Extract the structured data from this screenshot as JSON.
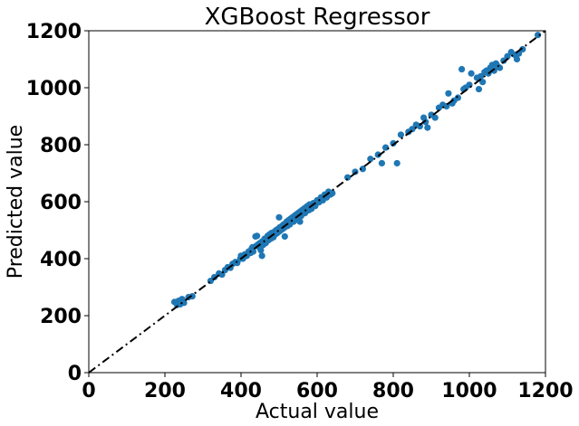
{
  "chart_data": {
    "type": "scatter",
    "title": "XGBoost Regressor",
    "xlabel": "Actual value",
    "ylabel": "Predicted value",
    "xlim": [
      0,
      1200
    ],
    "ylim": [
      0,
      1200
    ],
    "xticks": [
      "0",
      "200",
      "400",
      "600",
      "800",
      "1000",
      "1200"
    ],
    "yticks": [
      "0",
      "200",
      "400",
      "600",
      "800",
      "1000",
      "1200"
    ],
    "grid": false,
    "legend": "none",
    "marker_color": "#1f77b4",
    "reference_line": {
      "style": "dash-dot",
      "color": "#000000",
      "points": [
        [
          0,
          0
        ],
        [
          1200,
          1200
        ]
      ]
    },
    "series": [
      {
        "points": [
          [
            225,
            248
          ],
          [
            232,
            238
          ],
          [
            240,
            240
          ],
          [
            245,
            258
          ],
          [
            250,
            245
          ],
          [
            236,
            252
          ],
          [
            262,
            265
          ],
          [
            272,
            268
          ],
          [
            320,
            322
          ],
          [
            330,
            335
          ],
          [
            342,
            348
          ],
          [
            350,
            344
          ],
          [
            358,
            360
          ],
          [
            365,
            370
          ],
          [
            372,
            368
          ],
          [
            378,
            382
          ],
          [
            385,
            388
          ],
          [
            390,
            385
          ],
          [
            398,
            400
          ],
          [
            400,
            410
          ],
          [
            405,
            400
          ],
          [
            410,
            415
          ],
          [
            415,
            410
          ],
          [
            420,
            425
          ],
          [
            425,
            420
          ],
          [
            428,
            435
          ],
          [
            430,
            440
          ],
          [
            432,
            425
          ],
          [
            438,
            478
          ],
          [
            440,
            445
          ],
          [
            442,
            480
          ],
          [
            445,
            450
          ],
          [
            448,
            440
          ],
          [
            450,
            455
          ],
          [
            452,
            430
          ],
          [
            455,
            460
          ],
          [
            458,
            448
          ],
          [
            460,
            465
          ],
          [
            462,
            470
          ],
          [
            465,
            455
          ],
          [
            468,
            472
          ],
          [
            470,
            480
          ],
          [
            472,
            465
          ],
          [
            475,
            485
          ],
          [
            478,
            470
          ],
          [
            480,
            490
          ],
          [
            482,
            478
          ],
          [
            485,
            475
          ],
          [
            488,
            495
          ],
          [
            490,
            485
          ],
          [
            492,
            500
          ],
          [
            495,
            490
          ],
          [
            498,
            505
          ],
          [
            500,
            495
          ],
          [
            502,
            510
          ],
          [
            505,
            500
          ],
          [
            508,
            515
          ],
          [
            510,
            505
          ],
          [
            512,
            520
          ],
          [
            515,
            510
          ],
          [
            518,
            525
          ],
          [
            520,
            530
          ],
          [
            522,
            515
          ],
          [
            525,
            535
          ],
          [
            528,
            520
          ],
          [
            530,
            540
          ],
          [
            532,
            528
          ],
          [
            535,
            545
          ],
          [
            538,
            530
          ],
          [
            540,
            550
          ],
          [
            542,
            535
          ],
          [
            545,
            555
          ],
          [
            548,
            545
          ],
          [
            550,
            560
          ],
          [
            552,
            548
          ],
          [
            555,
            565
          ],
          [
            558,
            550
          ],
          [
            560,
            570
          ],
          [
            562,
            558
          ],
          [
            565,
            575
          ],
          [
            568,
            560
          ],
          [
            570,
            580
          ],
          [
            572,
            568
          ],
          [
            575,
            585
          ],
          [
            578,
            570
          ],
          [
            580,
            590
          ],
          [
            585,
            575
          ],
          [
            590,
            595
          ],
          [
            595,
            585
          ],
          [
            600,
            605
          ],
          [
            605,
            598
          ],
          [
            610,
            615
          ],
          [
            615,
            605
          ],
          [
            620,
            625
          ],
          [
            625,
            615
          ],
          [
            630,
            635
          ],
          [
            635,
            625
          ],
          [
            640,
            630
          ],
          [
            455,
            410
          ],
          [
            500,
            545
          ],
          [
            515,
            478
          ],
          [
            555,
            530
          ],
          [
            680,
            685
          ],
          [
            700,
            705
          ],
          [
            720,
            715
          ],
          [
            740,
            750
          ],
          [
            760,
            765
          ],
          [
            770,
            735
          ],
          [
            780,
            790
          ],
          [
            800,
            805
          ],
          [
            810,
            735
          ],
          [
            820,
            835
          ],
          [
            840,
            845
          ],
          [
            850,
            855
          ],
          [
            860,
            870
          ],
          [
            870,
            865
          ],
          [
            880,
            895
          ],
          [
            885,
            880
          ],
          [
            890,
            860
          ],
          [
            900,
            905
          ],
          [
            910,
            895
          ],
          [
            920,
            930
          ],
          [
            930,
            940
          ],
          [
            940,
            935
          ],
          [
            945,
            980
          ],
          [
            955,
            945
          ],
          [
            960,
            955
          ],
          [
            970,
            965
          ],
          [
            980,
            1065
          ],
          [
            985,
            995
          ],
          [
            990,
            1000
          ],
          [
            1000,
            1010
          ],
          [
            1005,
            1050
          ],
          [
            1020,
            1035
          ],
          [
            1025,
            995
          ],
          [
            1030,
            1040
          ],
          [
            1035,
            1020
          ],
          [
            1040,
            1055
          ],
          [
            1045,
            1060
          ],
          [
            1050,
            1050
          ],
          [
            1055,
            1070
          ],
          [
            1060,
            1080
          ],
          [
            1065,
            1060
          ],
          [
            1070,
            1085
          ],
          [
            1075,
            1075
          ],
          [
            1080,
            1070
          ],
          [
            1090,
            1095
          ],
          [
            1100,
            1110
          ],
          [
            1110,
            1125
          ],
          [
            1120,
            1115
          ],
          [
            1125,
            1100
          ],
          [
            1130,
            1120
          ],
          [
            1140,
            1135
          ],
          [
            1180,
            1185
          ]
        ]
      }
    ]
  }
}
